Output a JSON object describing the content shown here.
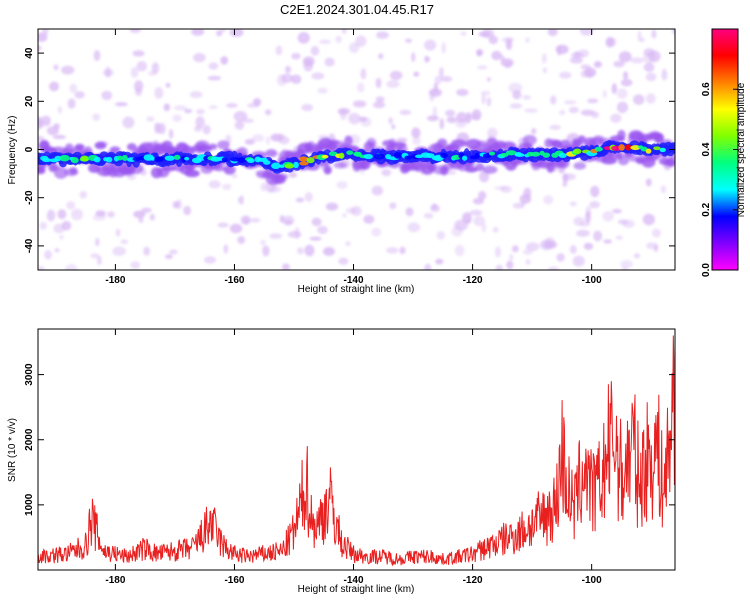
{
  "title": "C2E1.2024.301.04.45.R17",
  "colors": {
    "snr_line": "#e82020",
    "spectro_core": "#2020ff",
    "spectro_halo": "#9a55ef",
    "spectro_faint": "#d7b6f5",
    "axis": "#000000"
  },
  "chart_data": [
    {
      "type": "heatmap",
      "title": "",
      "xlabel": "Height of straight line (km)",
      "ylabel": "Frequency (Hz)",
      "xlim": [
        -193,
        -86
      ],
      "ylim": [
        -50,
        50
      ],
      "x_ticks": [
        -180,
        -160,
        -140,
        -120,
        -100
      ],
      "y_ticks": [
        -40,
        -20,
        0,
        20,
        40
      ],
      "colorbar": {
        "label": "Normalized spectral amplitude",
        "range": [
          0.0,
          0.8
        ],
        "ticks": [
          0.0,
          0.2,
          0.4,
          0.6
        ],
        "tick_labels": [
          "0.0",
          "0.2",
          "0.4",
          "0.6"
        ],
        "colormap": [
          "#ff00ff",
          "#8000ff",
          "#0000ff",
          "#00ffff",
          "#00ff80",
          "#80ff00",
          "#ffff00",
          "#ff8000",
          "#ff0000",
          "#ff0080"
        ]
      },
      "ridge": {
        "x": [
          -193,
          -185,
          -175,
          -165,
          -160,
          -155,
          -153,
          -150,
          -147,
          -145,
          -142,
          -140,
          -135,
          -130,
          -125,
          -120,
          -115,
          -110,
          -105,
          -100,
          -96,
          -90,
          -86
        ],
        "freq_hz": [
          -4,
          -4,
          -4,
          -4,
          -4,
          -5,
          -7,
          -6,
          -4,
          -3,
          -2,
          -2,
          -3,
          -3,
          -3,
          -3,
          -2,
          -2,
          -2,
          -1,
          1,
          0,
          0
        ],
        "amplitude": [
          0.35,
          0.35,
          0.35,
          0.32,
          0.3,
          0.3,
          0.35,
          0.5,
          0.75,
          0.6,
          0.45,
          0.4,
          0.3,
          0.3,
          0.3,
          0.3,
          0.35,
          0.35,
          0.45,
          0.5,
          0.8,
          0.5,
          0.4
        ]
      }
    },
    {
      "type": "line",
      "title": "",
      "xlabel": "Height of straight line (km)",
      "ylabel": "SNR (10 * v/v)",
      "xlim": [
        -193,
        -86
      ],
      "ylim": [
        0,
        3700
      ],
      "x_ticks": [
        -180,
        -160,
        -140,
        -120,
        -100
      ],
      "y_ticks": [
        1000,
        2000,
        3000
      ],
      "series": [
        {
          "color": "#e82020",
          "x": [
            -193,
            -188,
            -185,
            -184,
            -182,
            -180,
            -178,
            -175,
            -173,
            -170,
            -167,
            -165,
            -164,
            -162,
            -160,
            -158,
            -155,
            -152,
            -150,
            -149,
            -148,
            -147,
            -146,
            -145,
            -144,
            -143,
            -142,
            -140,
            -138,
            -135,
            -132,
            -130,
            -127,
            -125,
            -122,
            -120,
            -118,
            -116,
            -114,
            -112,
            -110,
            -108,
            -106,
            -105,
            -104,
            -103,
            -102,
            -101,
            -100,
            -99,
            -98,
            -97,
            -96,
            -95,
            -94,
            -93,
            -92,
            -91,
            -90,
            -89,
            -88,
            -87,
            -86
          ],
          "values": [
            250,
            300,
            450,
            950,
            350,
            300,
            250,
            400,
            300,
            350,
            400,
            700,
            900,
            450,
            300,
            250,
            300,
            350,
            700,
            1100,
            1700,
            900,
            800,
            1100,
            1300,
            900,
            500,
            300,
            250,
            250,
            200,
            250,
            250,
            200,
            250,
            300,
            400,
            500,
            600,
            700,
            850,
            1000,
            1200,
            2200,
            1500,
            1100,
            1600,
            2000,
            1400,
            1500,
            1800,
            2300,
            2450,
            1700,
            2000,
            2350,
            1600,
            2000,
            2100,
            2300,
            1500,
            2200,
            3700
          ]
        }
      ]
    }
  ]
}
